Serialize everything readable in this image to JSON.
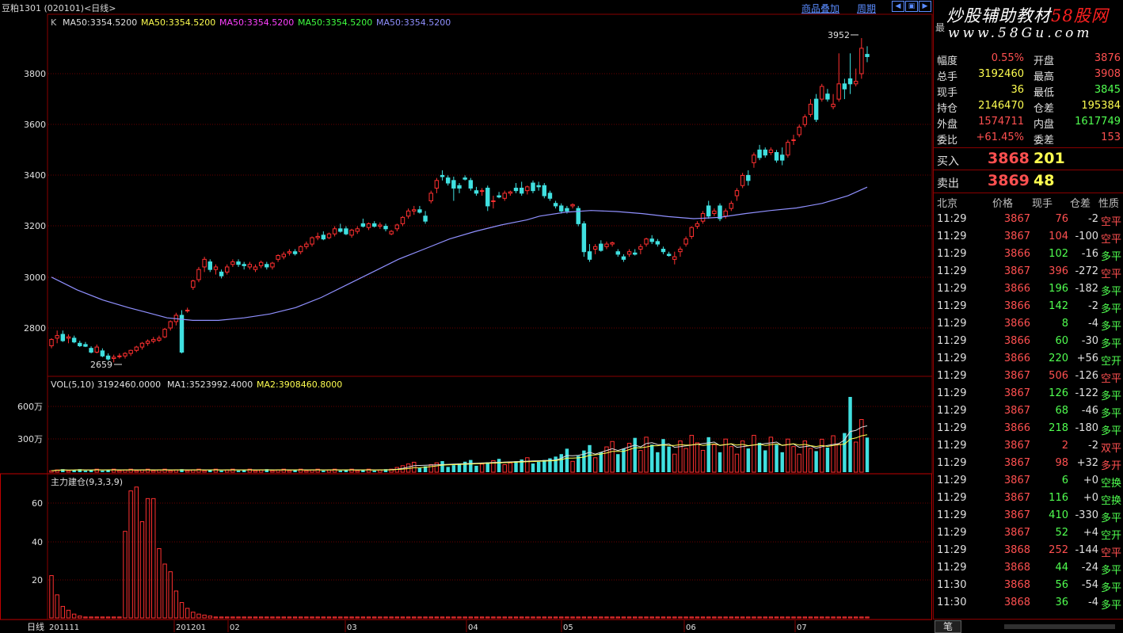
{
  "window": {
    "title": "豆粕1301 (020101)<日线>",
    "links": [
      "商品叠加",
      "周期"
    ],
    "buttons": [
      "◀",
      "▣",
      "▶"
    ]
  },
  "main_chart": {
    "legend": [
      {
        "text": "K",
        "color": "#c0c0c0"
      },
      {
        "text": "MA50:3354.5200",
        "color": "#e0e0e0"
      },
      {
        "text": "MA50:3354.5200",
        "color": "#ffff50"
      },
      {
        "text": "MA50:3354.5200",
        "color": "#ff40ff"
      },
      {
        "text": "MA50:3354.5200",
        "color": "#40ff40"
      },
      {
        "text": "MA50:3354.5200",
        "color": "#9090ff"
      }
    ],
    "y_ticks": [
      "3800",
      "3600",
      "3400",
      "3200",
      "3000",
      "2800"
    ],
    "high_label": "3952",
    "low_label": "2659"
  },
  "volume_chart": {
    "legend": "VOL(5,10) 3192460.0000",
    "ma1": "MA1:3523992.4000",
    "ma2": "MA2:3908460.8000",
    "y_ticks": [
      "600万",
      "300万"
    ]
  },
  "indicator_chart": {
    "legend": "主力建仓(9,3,3,9)",
    "y_ticks": [
      "60",
      "40",
      "20"
    ]
  },
  "x_axis": {
    "period_label": "日线",
    "labels": [
      "201111",
      "201201",
      "02",
      "03",
      "04",
      "05",
      "06",
      "07"
    ]
  },
  "chart_data": {
    "type": "candlestick",
    "ylim": [
      2640,
      3980
    ],
    "candles": [
      [
        2730,
        2760,
        2720,
        2755
      ],
      [
        2760,
        2790,
        2740,
        2770
      ],
      [
        2775,
        2790,
        2745,
        2750
      ],
      [
        2760,
        2775,
        2740,
        2765
      ],
      [
        2760,
        2770,
        2740,
        2745
      ],
      [
        2740,
        2750,
        2725,
        2730
      ],
      [
        2735,
        2745,
        2725,
        2728
      ],
      [
        2720,
        2728,
        2700,
        2705
      ],
      [
        2705,
        2735,
        2700,
        2725
      ],
      [
        2710,
        2720,
        2685,
        2690
      ],
      [
        2690,
        2700,
        2672,
        2678
      ],
      [
        2680,
        2695,
        2665,
        2685
      ],
      [
        2688,
        2700,
        2680,
        2690
      ],
      [
        2690,
        2705,
        2680,
        2700
      ],
      [
        2700,
        2715,
        2690,
        2712
      ],
      [
        2712,
        2730,
        2705,
        2725
      ],
      [
        2725,
        2745,
        2715,
        2740
      ],
      [
        2740,
        2755,
        2730,
        2748
      ],
      [
        2748,
        2765,
        2740,
        2755
      ],
      [
        2752,
        2770,
        2745,
        2760
      ],
      [
        2765,
        2800,
        2760,
        2795
      ],
      [
        2800,
        2830,
        2790,
        2825
      ],
      [
        2825,
        2860,
        2810,
        2850
      ],
      [
        2850,
        2870,
        2700,
        2705
      ],
      [
        2870,
        2880,
        2860,
        2870
      ],
      [
        2960,
        2990,
        2950,
        2985
      ],
      [
        2990,
        3040,
        2980,
        3030
      ],
      [
        3040,
        3080,
        3020,
        3070
      ],
      [
        3060,
        3070,
        3020,
        3030
      ],
      [
        3030,
        3050,
        3010,
        3040
      ],
      [
        3020,
        3030,
        2995,
        3005
      ],
      [
        3020,
        3050,
        3010,
        3040
      ],
      [
        3050,
        3070,
        3040,
        3060
      ],
      [
        3060,
        3070,
        3040,
        3050
      ],
      [
        3050,
        3060,
        3030,
        3045
      ],
      [
        3040,
        3060,
        3030,
        3050
      ],
      [
        3030,
        3050,
        3020,
        3040
      ],
      [
        3045,
        3065,
        3035,
        3058
      ],
      [
        3050,
        3060,
        3030,
        3040
      ],
      [
        3040,
        3060,
        3030,
        3055
      ],
      [
        3070,
        3090,
        3060,
        3085
      ],
      [
        3080,
        3100,
        3070,
        3090
      ],
      [
        3095,
        3110,
        3085,
        3100
      ],
      [
        3100,
        3110,
        3085,
        3092
      ],
      [
        3100,
        3125,
        3090,
        3120
      ],
      [
        3120,
        3140,
        3110,
        3130
      ],
      [
        3130,
        3160,
        3120,
        3155
      ],
      [
        3155,
        3175,
        3145,
        3160
      ],
      [
        3165,
        3180,
        3145,
        3150
      ],
      [
        3155,
        3175,
        3150,
        3170
      ],
      [
        3170,
        3200,
        3160,
        3190
      ],
      [
        3190,
        3210,
        3175,
        3180
      ],
      [
        3190,
        3200,
        3165,
        3170
      ],
      [
        3165,
        3190,
        3155,
        3185
      ],
      [
        3180,
        3200,
        3170,
        3190
      ],
      [
        3210,
        3230,
        3195,
        3200
      ],
      [
        3195,
        3215,
        3185,
        3210
      ],
      [
        3210,
        3220,
        3195,
        3200
      ],
      [
        3200,
        3215,
        3190,
        3205
      ],
      [
        3200,
        3210,
        3180,
        3190
      ],
      [
        3170,
        3185,
        3165,
        3180
      ],
      [
        3190,
        3210,
        3180,
        3205
      ],
      [
        3210,
        3240,
        3200,
        3235
      ],
      [
        3240,
        3270,
        3230,
        3260
      ],
      [
        3260,
        3280,
        3245,
        3265
      ],
      [
        3265,
        3280,
        3250,
        3255
      ],
      [
        3240,
        3260,
        3210,
        3220
      ],
      [
        3300,
        3340,
        3290,
        3330
      ],
      [
        3350,
        3390,
        3330,
        3380
      ],
      [
        3400,
        3420,
        3380,
        3395
      ],
      [
        3390,
        3400,
        3360,
        3370
      ],
      [
        3380,
        3395,
        3300,
        3350
      ],
      [
        3360,
        3370,
        3330,
        3350
      ],
      [
        3390,
        3400,
        3380,
        3385
      ],
      [
        3380,
        3390,
        3340,
        3350
      ],
      [
        3340,
        3355,
        3320,
        3330
      ],
      [
        3340,
        3350,
        3320,
        3340
      ],
      [
        3350,
        3360,
        3260,
        3280
      ],
      [
        3300,
        3320,
        3270,
        3300
      ],
      [
        3320,
        3335,
        3310,
        3315
      ],
      [
        3310,
        3340,
        3300,
        3330
      ],
      [
        3330,
        3340,
        3320,
        3335
      ],
      [
        3350,
        3370,
        3330,
        3340
      ],
      [
        3350,
        3375,
        3320,
        3330
      ],
      [
        3340,
        3360,
        3325,
        3355
      ],
      [
        3370,
        3380,
        3330,
        3340
      ],
      [
        3360,
        3375,
        3340,
        3355
      ],
      [
        3360,
        3370,
        3310,
        3320
      ],
      [
        3330,
        3340,
        3300,
        3310
      ],
      [
        3290,
        3300,
        3270,
        3280
      ],
      [
        3280,
        3290,
        3250,
        3260
      ],
      [
        3270,
        3280,
        3250,
        3260
      ],
      [
        3280,
        3290,
        3270,
        3285
      ],
      [
        3270,
        3280,
        3200,
        3210
      ],
      [
        3210,
        3220,
        3080,
        3100
      ],
      [
        3100,
        3130,
        3060,
        3070
      ],
      [
        3110,
        3130,
        3090,
        3120
      ],
      [
        3130,
        3145,
        3100,
        3105
      ],
      [
        3120,
        3140,
        3110,
        3130
      ],
      [
        3130,
        3140,
        3120,
        3135
      ],
      [
        3100,
        3110,
        3080,
        3090
      ],
      [
        3080,
        3090,
        3060,
        3070
      ],
      [
        3090,
        3110,
        3080,
        3100
      ],
      [
        3095,
        3110,
        3085,
        3090
      ],
      [
        3110,
        3130,
        3090,
        3120
      ],
      [
        3130,
        3155,
        3120,
        3150
      ],
      [
        3150,
        3165,
        3130,
        3140
      ],
      [
        3140,
        3150,
        3120,
        3130
      ],
      [
        3110,
        3120,
        3090,
        3100
      ],
      [
        3090,
        3100,
        3080,
        3085
      ],
      [
        3070,
        3100,
        3050,
        3080
      ],
      [
        3100,
        3120,
        3080,
        3110
      ],
      [
        3130,
        3160,
        3120,
        3150
      ],
      [
        3160,
        3200,
        3150,
        3195
      ],
      [
        3200,
        3220,
        3190,
        3210
      ],
      [
        3220,
        3260,
        3210,
        3250
      ],
      [
        3280,
        3300,
        3230,
        3240
      ],
      [
        3250,
        3270,
        3240,
        3260
      ],
      [
        3280,
        3290,
        3220,
        3230
      ],
      [
        3240,
        3270,
        3230,
        3260
      ],
      [
        3270,
        3300,
        3260,
        3290
      ],
      [
        3320,
        3350,
        3300,
        3340
      ],
      [
        3360,
        3410,
        3350,
        3400
      ],
      [
        3400,
        3420,
        3360,
        3380
      ],
      [
        3450,
        3490,
        3430,
        3480
      ],
      [
        3500,
        3520,
        3460,
        3470
      ],
      [
        3500,
        3510,
        3470,
        3480
      ],
      [
        3490,
        3510,
        3480,
        3500
      ],
      [
        3490,
        3500,
        3450,
        3460
      ],
      [
        3480,
        3510,
        3440,
        3460
      ],
      [
        3480,
        3540,
        3470,
        3530
      ],
      [
        3540,
        3560,
        3520,
        3540
      ],
      [
        3560,
        3600,
        3550,
        3590
      ],
      [
        3600,
        3640,
        3590,
        3630
      ],
      [
        3640,
        3700,
        3630,
        3680
      ],
      [
        3700,
        3720,
        3610,
        3620
      ],
      [
        3700,
        3760,
        3690,
        3750
      ],
      [
        3720,
        3740,
        3690,
        3700
      ],
      [
        3670,
        3720,
        3660,
        3680
      ],
      [
        3700,
        3880,
        3690,
        3760
      ],
      [
        3760,
        3780,
        3700,
        3740
      ],
      [
        3780,
        3880,
        3720,
        3760
      ],
      [
        3760,
        3820,
        3750,
        3770
      ],
      [
        3800,
        3940,
        3780,
        3900
      ],
      [
        3876,
        3908,
        3845,
        3867
      ]
    ],
    "ma50": [
      [
        0,
        3000
      ],
      [
        8,
        2950
      ],
      [
        16,
        2910
      ],
      [
        24,
        2880
      ],
      [
        30,
        2860
      ],
      [
        36,
        2840
      ],
      [
        44,
        2830
      ],
      [
        52,
        2830
      ],
      [
        60,
        2840
      ],
      [
        68,
        2855
      ],
      [
        76,
        2880
      ],
      [
        84,
        2920
      ],
      [
        92,
        2970
      ],
      [
        100,
        3020
      ],
      [
        108,
        3070
      ],
      [
        116,
        3110
      ],
      [
        124,
        3150
      ],
      [
        132,
        3180
      ],
      [
        140,
        3205
      ],
      [
        148,
        3225
      ],
      [
        152,
        3240
      ],
      [
        160,
        3255
      ],
      [
        168,
        3262
      ],
      [
        176,
        3258
      ],
      [
        184,
        3250
      ],
      [
        192,
        3238
      ],
      [
        200,
        3230
      ],
      [
        208,
        3235
      ],
      [
        216,
        3250
      ],
      [
        224,
        3262
      ],
      [
        232,
        3272
      ],
      [
        240,
        3290
      ],
      [
        248,
        3320
      ],
      [
        254,
        3354
      ]
    ]
  },
  "quote": {
    "rows": [
      {
        "l1": "幅度",
        "v1": "0.55%",
        "c1": "red",
        "l2": "开盘",
        "v2": "3876",
        "c2": "red"
      },
      {
        "l1": "总手",
        "v1": "3192460",
        "c1": "yellow",
        "l2": "最高",
        "v2": "3908",
        "c2": "red"
      },
      {
        "l1": "现手",
        "v1": "36",
        "c1": "yellow",
        "l2": "最低",
        "v2": "3845",
        "c2": "green"
      },
      {
        "l1": "持仓",
        "v1": "2146470",
        "c1": "yellow",
        "l2": "仓差",
        "v2": "195384",
        "c2": "yellow"
      },
      {
        "l1": "外盘",
        "v1": "1574711",
        "c1": "red",
        "l2": "内盘",
        "v2": "1617749",
        "c2": "green"
      },
      {
        "l1": "委比",
        "v1": "+61.45%",
        "c1": "red",
        "l2": "委差",
        "v2": "153",
        "c2": "red"
      }
    ],
    "buy": {
      "label": "买入",
      "price": "3868",
      "volume": "201"
    },
    "sell": {
      "label": "卖出",
      "price": "3869",
      "volume": "48"
    }
  },
  "watermark": {
    "text1": "炒股辅助教材",
    "text2": "58股网",
    "url": "www.58Gu.com"
  },
  "ticks": {
    "headers": [
      "北京",
      "价格",
      "现手",
      "仓差",
      "性质"
    ],
    "rows": [
      {
        "time": "11:29",
        "price": "3867",
        "vol": "76",
        "vc": "red",
        "oi": "-2",
        "nature": "空平",
        "nc": "red"
      },
      {
        "time": "11:29",
        "price": "3867",
        "vol": "104",
        "vc": "red",
        "oi": "-100",
        "nature": "空平",
        "nc": "red"
      },
      {
        "time": "11:29",
        "price": "3866",
        "vol": "102",
        "vc": "green",
        "oi": "-16",
        "nature": "多平",
        "nc": "green"
      },
      {
        "time": "11:29",
        "price": "3867",
        "vol": "396",
        "vc": "red",
        "oi": "-272",
        "nature": "空平",
        "nc": "red"
      },
      {
        "time": "11:29",
        "price": "3866",
        "vol": "196",
        "vc": "green",
        "oi": "-182",
        "nature": "多平",
        "nc": "green"
      },
      {
        "time": "11:29",
        "price": "3866",
        "vol": "142",
        "vc": "green",
        "oi": "-2",
        "nature": "多平",
        "nc": "green"
      },
      {
        "time": "11:29",
        "price": "3866",
        "vol": "8",
        "vc": "green",
        "oi": "-4",
        "nature": "多平",
        "nc": "green"
      },
      {
        "time": "11:29",
        "price": "3866",
        "vol": "60",
        "vc": "green",
        "oi": "-30",
        "nature": "多平",
        "nc": "green"
      },
      {
        "time": "11:29",
        "price": "3866",
        "vol": "220",
        "vc": "green",
        "oi": "+56",
        "nature": "空开",
        "nc": "green"
      },
      {
        "time": "11:29",
        "price": "3867",
        "vol": "506",
        "vc": "red",
        "oi": "-126",
        "nature": "空平",
        "nc": "red"
      },
      {
        "time": "11:29",
        "price": "3867",
        "vol": "126",
        "vc": "green",
        "oi": "-122",
        "nature": "多平",
        "nc": "green"
      },
      {
        "time": "11:29",
        "price": "3867",
        "vol": "68",
        "vc": "green",
        "oi": "-46",
        "nature": "多平",
        "nc": "green"
      },
      {
        "time": "11:29",
        "price": "3866",
        "vol": "218",
        "vc": "green",
        "oi": "-180",
        "nature": "多平",
        "nc": "green"
      },
      {
        "time": "11:29",
        "price": "3867",
        "vol": "2",
        "vc": "red",
        "oi": "-2",
        "nature": "双平",
        "nc": "red"
      },
      {
        "time": "11:29",
        "price": "3867",
        "vol": "98",
        "vc": "red",
        "oi": "+32",
        "nature": "多开",
        "nc": "red"
      },
      {
        "time": "11:29",
        "price": "3867",
        "vol": "6",
        "vc": "green",
        "oi": "+0",
        "nature": "空换",
        "nc": "green"
      },
      {
        "time": "11:29",
        "price": "3867",
        "vol": "116",
        "vc": "green",
        "oi": "+0",
        "nature": "空换",
        "nc": "green"
      },
      {
        "time": "11:29",
        "price": "3867",
        "vol": "410",
        "vc": "green",
        "oi": "-330",
        "nature": "多平",
        "nc": "green"
      },
      {
        "time": "11:29",
        "price": "3867",
        "vol": "52",
        "vc": "green",
        "oi": "+4",
        "nature": "空开",
        "nc": "green"
      },
      {
        "time": "11:29",
        "price": "3868",
        "vol": "252",
        "vc": "red",
        "oi": "-144",
        "nature": "空平",
        "nc": "red"
      },
      {
        "time": "11:29",
        "price": "3868",
        "vol": "44",
        "vc": "green",
        "oi": "-24",
        "nature": "多平",
        "nc": "green"
      },
      {
        "time": "11:30",
        "price": "3868",
        "vol": "56",
        "vc": "green",
        "oi": "-54",
        "nature": "多平",
        "nc": "green"
      },
      {
        "time": "11:30",
        "price": "3868",
        "vol": "36",
        "vc": "green",
        "oi": "-4",
        "nature": "多平",
        "nc": "green"
      }
    ]
  },
  "bottom_tab": "笔"
}
